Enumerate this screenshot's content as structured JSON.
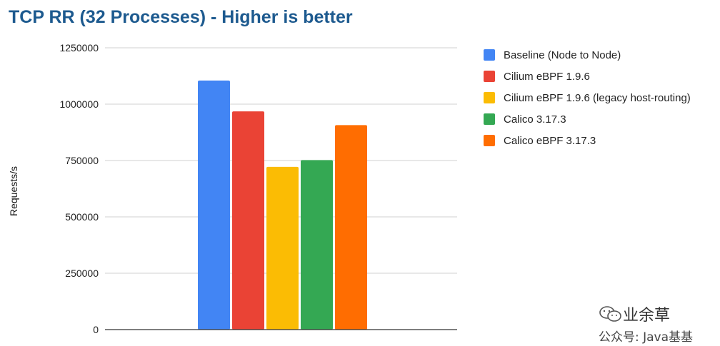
{
  "chart_data": {
    "type": "bar",
    "title": "TCP RR (32 Processes) - Higher is better",
    "xlabel": "",
    "ylabel": "Requests/s",
    "ylim": [
      0,
      1250000
    ],
    "yticks": [
      "0",
      "250000",
      "500000",
      "750000",
      "1000000",
      "1250000"
    ],
    "grid": true,
    "legend_position": "right",
    "categories": [
      ""
    ],
    "series": [
      {
        "name": "Baseline (Node to Node)",
        "values": [
          1105000
        ],
        "color": "#4285f4"
      },
      {
        "name": "Cilium eBPF 1.9.6",
        "values": [
          968000
        ],
        "color": "#ea4335"
      },
      {
        "name": "Cilium eBPF 1.9.6 (legacy host-routing)",
        "values": [
          722000
        ],
        "color": "#fbbc04"
      },
      {
        "name": "Calico 3.17.3",
        "values": [
          752000
        ],
        "color": "#34a853"
      },
      {
        "name": "Calico eBPF 3.17.3",
        "values": [
          907000
        ],
        "color": "#ff6d01"
      }
    ]
  },
  "watermark": {
    "line1": "业余草",
    "line2": "公众号: Java基基"
  }
}
